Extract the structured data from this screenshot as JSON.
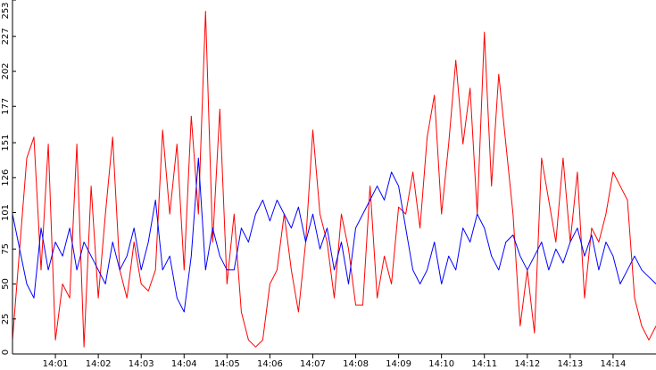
{
  "chart_data": {
    "type": "line",
    "title": "",
    "xlabel": "",
    "ylabel": "",
    "grid": false,
    "legend": "none",
    "ylim": [
      0,
      253
    ],
    "y_ticks": [
      0,
      25,
      50,
      75,
      101,
      126,
      151,
      177,
      202,
      227,
      253
    ],
    "x_range": [
      "14:00",
      "14:15"
    ],
    "x_ticks": [
      "14:01",
      "14:02",
      "14:03",
      "14:04",
      "14:05",
      "14:06",
      "14:07",
      "14:08",
      "14:09",
      "14:10",
      "14:11",
      "14:12",
      "14:13",
      "14:14"
    ],
    "series": [
      {
        "color": "#ff0000",
        "x": [
          "14:00:00",
          "14:00:20",
          "14:00:30",
          "14:00:40",
          "14:00:50",
          "14:01:00",
          "14:01:10",
          "14:01:20",
          "14:01:30",
          "14:01:40",
          "14:01:50",
          "14:02:00",
          "14:02:10",
          "14:02:20",
          "14:02:30",
          "14:02:40",
          "14:02:50",
          "14:03:00",
          "14:03:10",
          "14:03:20",
          "14:03:30",
          "14:03:40",
          "14:03:50",
          "14:04:00",
          "14:04:10",
          "14:04:20",
          "14:04:30",
          "14:04:40",
          "14:04:50",
          "14:05:00",
          "14:05:10",
          "14:05:20",
          "14:05:30",
          "14:05:40",
          "14:05:50",
          "14:06:00",
          "14:06:10",
          "14:06:20",
          "14:06:30",
          "14:06:40",
          "14:06:50",
          "14:07:00",
          "14:07:10",
          "14:07:20",
          "14:07:30",
          "14:07:40",
          "14:07:50",
          "14:08:00",
          "14:08:10",
          "14:08:20",
          "14:08:30",
          "14:08:40",
          "14:08:50",
          "14:09:00",
          "14:09:10",
          "14:09:20",
          "14:09:30",
          "14:09:40",
          "14:09:50",
          "14:10:00",
          "14:10:10",
          "14:10:20",
          "14:10:30",
          "14:10:40",
          "14:10:50",
          "14:11:00",
          "14:11:10",
          "14:11:20",
          "14:11:30",
          "14:11:40",
          "14:11:50",
          "14:12:00",
          "14:12:10",
          "14:12:20",
          "14:12:30",
          "14:12:40",
          "14:12:50",
          "14:13:00",
          "14:13:10",
          "14:13:20",
          "14:13:30",
          "14:13:40",
          "14:13:50",
          "14:14:00",
          "14:14:10",
          "14:14:20",
          "14:14:30",
          "14:14:40",
          "14:14:50",
          "14:15:00"
        ],
        "values": [
          10,
          140,
          155,
          60,
          150,
          10,
          50,
          40,
          150,
          5,
          120,
          40,
          100,
          155,
          60,
          40,
          80,
          50,
          45,
          60,
          160,
          100,
          150,
          60,
          170,
          100,
          245,
          80,
          175,
          50,
          100,
          30,
          10,
          5,
          10,
          50,
          60,
          100,
          60,
          30,
          80,
          160,
          100,
          80,
          40,
          100,
          75,
          35,
          35,
          120,
          40,
          70,
          50,
          105,
          100,
          130,
          90,
          155,
          185,
          100,
          150,
          210,
          150,
          190,
          100,
          230,
          120,
          200,
          150,
          100,
          20,
          60,
          15,
          140,
          110,
          80,
          140,
          80,
          130,
          40,
          90,
          80,
          100,
          130,
          120,
          110,
          40,
          20,
          10,
          20
        ]
      },
      {
        "color": "#0000ff",
        "x": [
          "14:00:00",
          "14:00:20",
          "14:00:30",
          "14:00:40",
          "14:00:50",
          "14:01:00",
          "14:01:10",
          "14:01:20",
          "14:01:30",
          "14:01:40",
          "14:01:50",
          "14:02:00",
          "14:02:10",
          "14:02:20",
          "14:02:30",
          "14:02:40",
          "14:02:50",
          "14:03:00",
          "14:03:10",
          "14:03:20",
          "14:03:30",
          "14:03:40",
          "14:03:50",
          "14:04:00",
          "14:04:10",
          "14:04:20",
          "14:04:30",
          "14:04:40",
          "14:04:50",
          "14:05:00",
          "14:05:10",
          "14:05:20",
          "14:05:30",
          "14:05:40",
          "14:05:50",
          "14:06:00",
          "14:06:10",
          "14:06:20",
          "14:06:30",
          "14:06:40",
          "14:06:50",
          "14:07:00",
          "14:07:10",
          "14:07:20",
          "14:07:30",
          "14:07:40",
          "14:07:50",
          "14:08:00",
          "14:08:10",
          "14:08:20",
          "14:08:30",
          "14:08:40",
          "14:08:50",
          "14:09:00",
          "14:09:10",
          "14:09:20",
          "14:09:30",
          "14:09:40",
          "14:09:50",
          "14:10:00",
          "14:10:10",
          "14:10:20",
          "14:10:30",
          "14:10:40",
          "14:10:50",
          "14:11:00",
          "14:11:10",
          "14:11:20",
          "14:11:30",
          "14:11:40",
          "14:11:50",
          "14:12:00",
          "14:12:10",
          "14:12:20",
          "14:12:30",
          "14:12:40",
          "14:12:50",
          "14:13:00",
          "14:13:10",
          "14:13:20",
          "14:13:30",
          "14:13:40",
          "14:13:50",
          "14:14:00",
          "14:14:10",
          "14:14:20",
          "14:14:30",
          "14:14:40",
          "14:14:50",
          "14:15:00"
        ],
        "values": [
          100,
          50,
          40,
          90,
          60,
          80,
          70,
          90,
          60,
          80,
          70,
          60,
          50,
          80,
          60,
          70,
          90,
          60,
          80,
          110,
          60,
          70,
          40,
          30,
          70,
          140,
          60,
          90,
          70,
          60,
          60,
          90,
          80,
          100,
          110,
          95,
          110,
          100,
          90,
          105,
          80,
          100,
          75,
          90,
          60,
          80,
          50,
          90,
          100,
          110,
          120,
          110,
          130,
          120,
          90,
          60,
          50,
          60,
          80,
          50,
          70,
          60,
          90,
          80,
          100,
          90,
          70,
          60,
          80,
          85,
          70,
          60,
          70,
          80,
          60,
          75,
          65,
          80,
          90,
          70,
          85,
          60,
          80,
          70,
          50,
          60,
          70,
          60,
          55,
          50
        ]
      }
    ]
  }
}
